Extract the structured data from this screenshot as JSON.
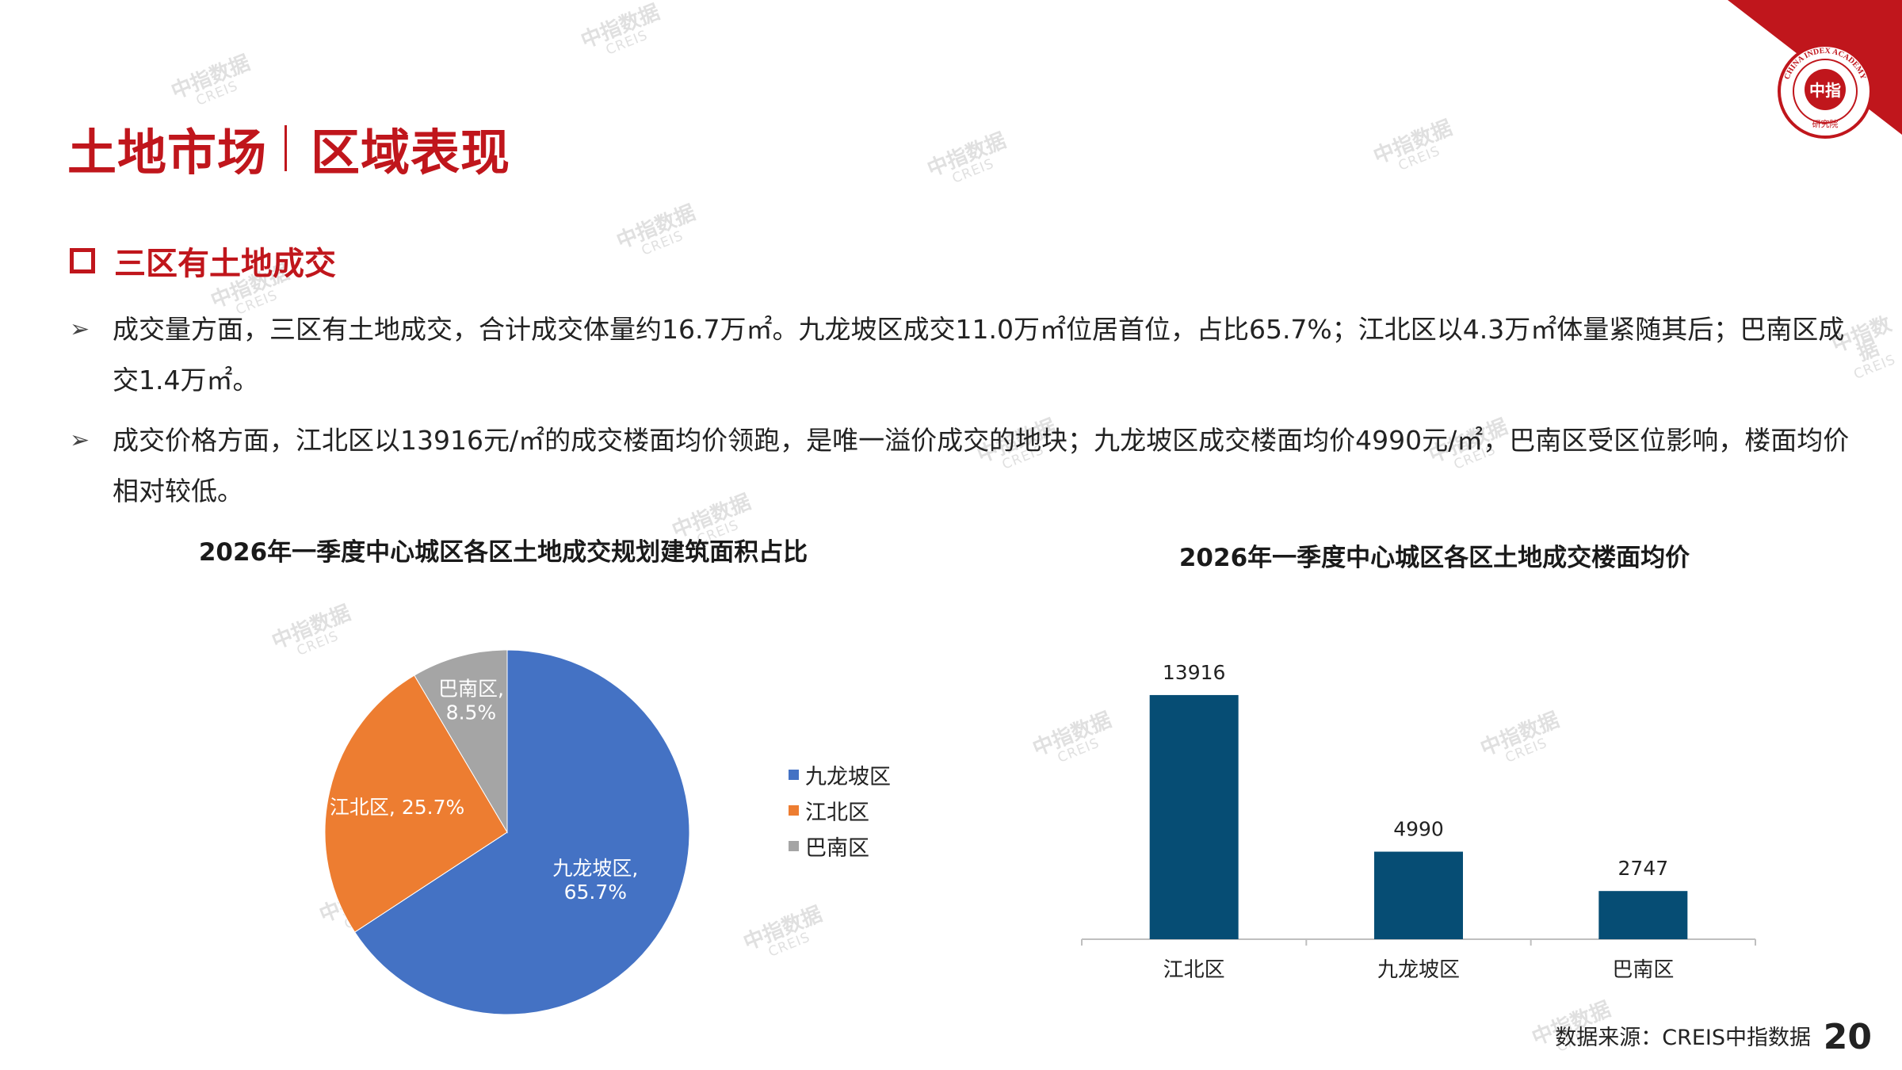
{
  "header": {
    "title_left": "土地市场",
    "title_right": "区域表现"
  },
  "logo": {
    "ring_text": "CHINA INDEX ACADEMY",
    "center_text": "中指",
    "bottom_text": "研究院"
  },
  "section": {
    "heading": "三区有土地成交"
  },
  "bullets": [
    "成交量方面，三区有土地成交，合计成交体量约16.7万㎡。九龙坡区成交11.0万㎡位居首位，占比65.7%；江北区以4.3万㎡体量紧随其后；巴南区成交1.4万㎡。",
    "成交价格方面，江北区以13916元/㎡的成交楼面均价领跑，是唯一溢价成交的地块；九龙坡区成交楼面均价4990元/㎡，巴南区受区位影响，楼面均价相对较低。"
  ],
  "watermark": {
    "cn": "中指数据",
    "en": "CREIS"
  },
  "colors": {
    "brand_red": "#c0161c",
    "pie_blue": "#4472c4",
    "pie_orange": "#ed7d31",
    "pie_gray": "#a5a5a5",
    "bar_navy": "#064d74"
  },
  "chart_data": [
    {
      "type": "pie",
      "title": "2026年一季度中心城区各区土地成交规划建筑面积占比",
      "categories": [
        "九龙坡区",
        "江北区",
        "巴南区"
      ],
      "values": [
        65.7,
        25.7,
        8.5
      ],
      "data_labels": [
        "九龙坡区, 65.7%",
        "江北区, 25.7%",
        "巴南区, 8.5%"
      ],
      "legend": "right",
      "colors": [
        "#4472c4",
        "#ed7d31",
        "#a5a5a5"
      ]
    },
    {
      "type": "bar",
      "title": "2026年一季度中心城区各区土地成交楼面均价",
      "categories": [
        "江北区",
        "九龙坡区",
        "巴南区"
      ],
      "values": [
        13916,
        4990,
        2747
      ],
      "data_labels": [
        "13916",
        "4990",
        "2747"
      ],
      "ylim": [
        0,
        16000
      ],
      "grid": false,
      "color": "#064d74"
    }
  ],
  "footer": {
    "source": "数据来源：CREIS中指数据",
    "page_number": "20"
  }
}
